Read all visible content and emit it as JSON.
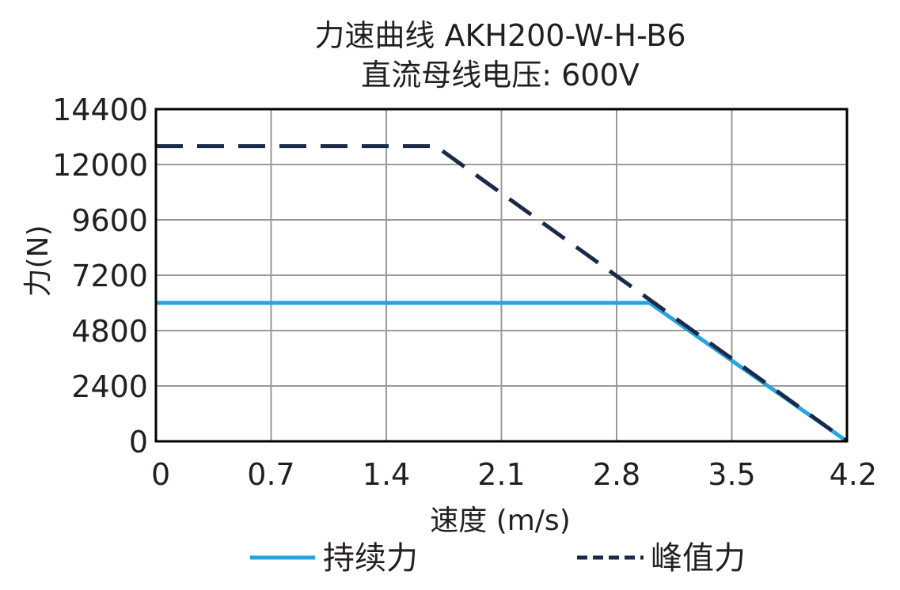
{
  "chart_data": {
    "type": "line",
    "title": "力速曲线 AKH200-W-H-B6",
    "subtitle": "直流母线电压: 600V",
    "xlabel": "速度 (m/s)",
    "ylabel": "力(N)",
    "xlim": [
      0,
      4.2
    ],
    "ylim": [
      0,
      14400
    ],
    "xticks": [
      "0",
      "0.7",
      "1.4",
      "2.1",
      "2.8",
      "3.5",
      "4.2"
    ],
    "yticks": [
      "0",
      "2400",
      "4800",
      "7200",
      "9600",
      "12000",
      "14400"
    ],
    "grid": true,
    "legend_position": "bottom",
    "series": [
      {
        "name": "持续力",
        "style": "solid",
        "color": "#27a4dd",
        "x": [
          0,
          3.0,
          4.2
        ],
        "y": [
          6000,
          6000,
          0
        ]
      },
      {
        "name": "峰值力",
        "style": "dashed",
        "color": "#1b2a4a",
        "x": [
          0,
          1.7,
          4.2
        ],
        "y": [
          12800,
          12800,
          0
        ]
      }
    ]
  }
}
